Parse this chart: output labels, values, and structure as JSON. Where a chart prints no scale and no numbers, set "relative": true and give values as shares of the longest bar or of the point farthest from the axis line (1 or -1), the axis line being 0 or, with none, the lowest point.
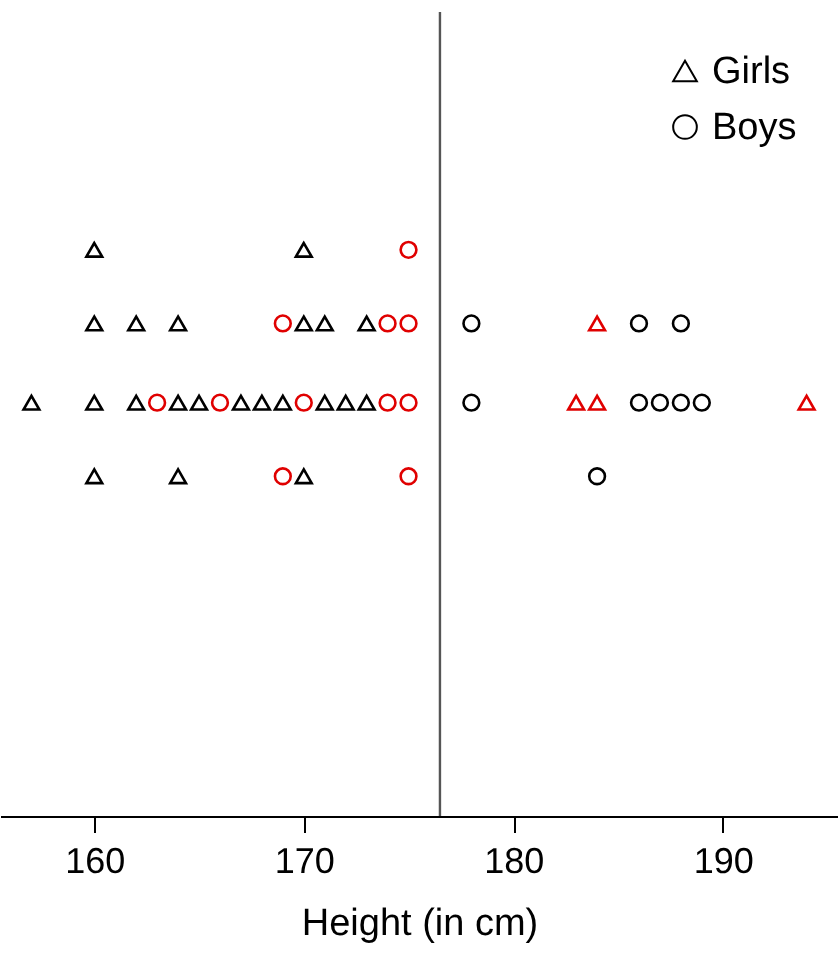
{
  "chart_data": {
    "type": "scatter",
    "xlabel": "Height (in cm)",
    "relative": true,
    "xlim": [
      155.5,
      195.5
    ],
    "xticks": [
      160,
      170,
      180,
      190
    ],
    "grid": false,
    "legend": "top right",
    "ref_lines": [
      {
        "axis": "x",
        "value": 176.5,
        "color": "#555555"
      }
    ],
    "series": [
      {
        "name": "Girls",
        "color": "#000000",
        "marker": "triangle",
        "x": [
          160,
          164,
          170,
          157,
          160,
          162,
          164,
          165,
          167,
          168,
          169,
          171,
          172,
          173,
          160,
          162,
          164,
          170,
          171,
          173,
          160,
          170
        ],
        "values": [
          0.6,
          0.6,
          0.6,
          0.73,
          0.73,
          0.73,
          0.73,
          0.73,
          0.73,
          0.73,
          0.73,
          0.73,
          0.73,
          0.73,
          0.87,
          0.87,
          0.87,
          0.87,
          0.87,
          0.87,
          1,
          1
        ]
      },
      {
        "name": "Boys",
        "color": "#000000",
        "marker": "circle",
        "x": [
          184,
          178,
          186,
          187,
          188,
          189,
          178,
          186,
          188
        ],
        "values": [
          0.6,
          0.73,
          0.73,
          0.73,
          0.73,
          0.73,
          0.87,
          0.87,
          0.87
        ]
      },
      {
        "color": "#e00000",
        "marker": "triangle",
        "x": [
          183,
          184,
          194,
          184
        ],
        "values": [
          0.73,
          0.73,
          0.73,
          0.87
        ]
      },
      {
        "color": "#e00000",
        "marker": "circle",
        "x": [
          169,
          175,
          163,
          166,
          170,
          174,
          175,
          169,
          174,
          175,
          175
        ],
        "values": [
          0.6,
          0.6,
          0.73,
          0.73,
          0.73,
          0.73,
          0.73,
          0.87,
          0.87,
          0.87,
          1
        ]
      }
    ]
  }
}
